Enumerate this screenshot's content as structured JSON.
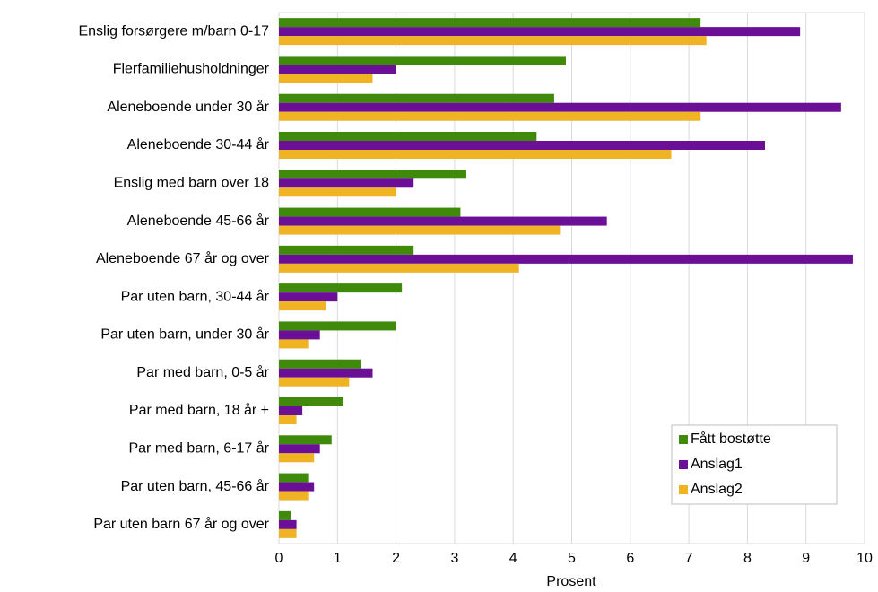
{
  "chart_data": {
    "type": "barh",
    "categories": [
      "Enslig forsørgere m/barn 0-17",
      "Flerfamiliehusholdninger",
      "Aleneboende under 30 år",
      "Aleneboende 30-44 år",
      "Enslig med barn over 18",
      "Aleneboende 45-66 år",
      "Aleneboende 67 år og over",
      "Par uten barn, 30-44 år",
      "Par uten barn, under 30 år",
      "Par med barn, 0-5 år",
      "Par med barn, 18 år +",
      "Par med barn, 6-17 år",
      "Par uten barn, 45-66 år",
      "Par uten barn 67 år og over"
    ],
    "series": [
      {
        "name": "Fått bostøtte",
        "color": "#3f8a0b",
        "values": [
          7.2,
          4.9,
          4.7,
          4.4,
          3.2,
          3.1,
          2.3,
          2.1,
          2.0,
          1.4,
          1.1,
          0.9,
          0.5,
          0.2
        ]
      },
      {
        "name": "Anslag1",
        "color": "#6a0f96",
        "values": [
          8.9,
          2.0,
          9.6,
          8.3,
          2.3,
          5.6,
          9.8,
          1.0,
          0.7,
          1.6,
          0.4,
          0.7,
          0.6,
          0.3
        ]
      },
      {
        "name": "Anslag2",
        "color": "#f0b323",
        "values": [
          7.3,
          1.6,
          7.2,
          6.7,
          2.0,
          4.8,
          4.1,
          0.8,
          0.5,
          1.2,
          0.3,
          0.6,
          0.5,
          0.3
        ]
      }
    ],
    "xlabel": "Prosent",
    "xlim": [
      0,
      10
    ],
    "xticks": [
      0,
      1,
      2,
      3,
      4,
      5,
      6,
      7,
      8,
      9,
      10
    ],
    "grid": true,
    "legend": "lower right"
  }
}
